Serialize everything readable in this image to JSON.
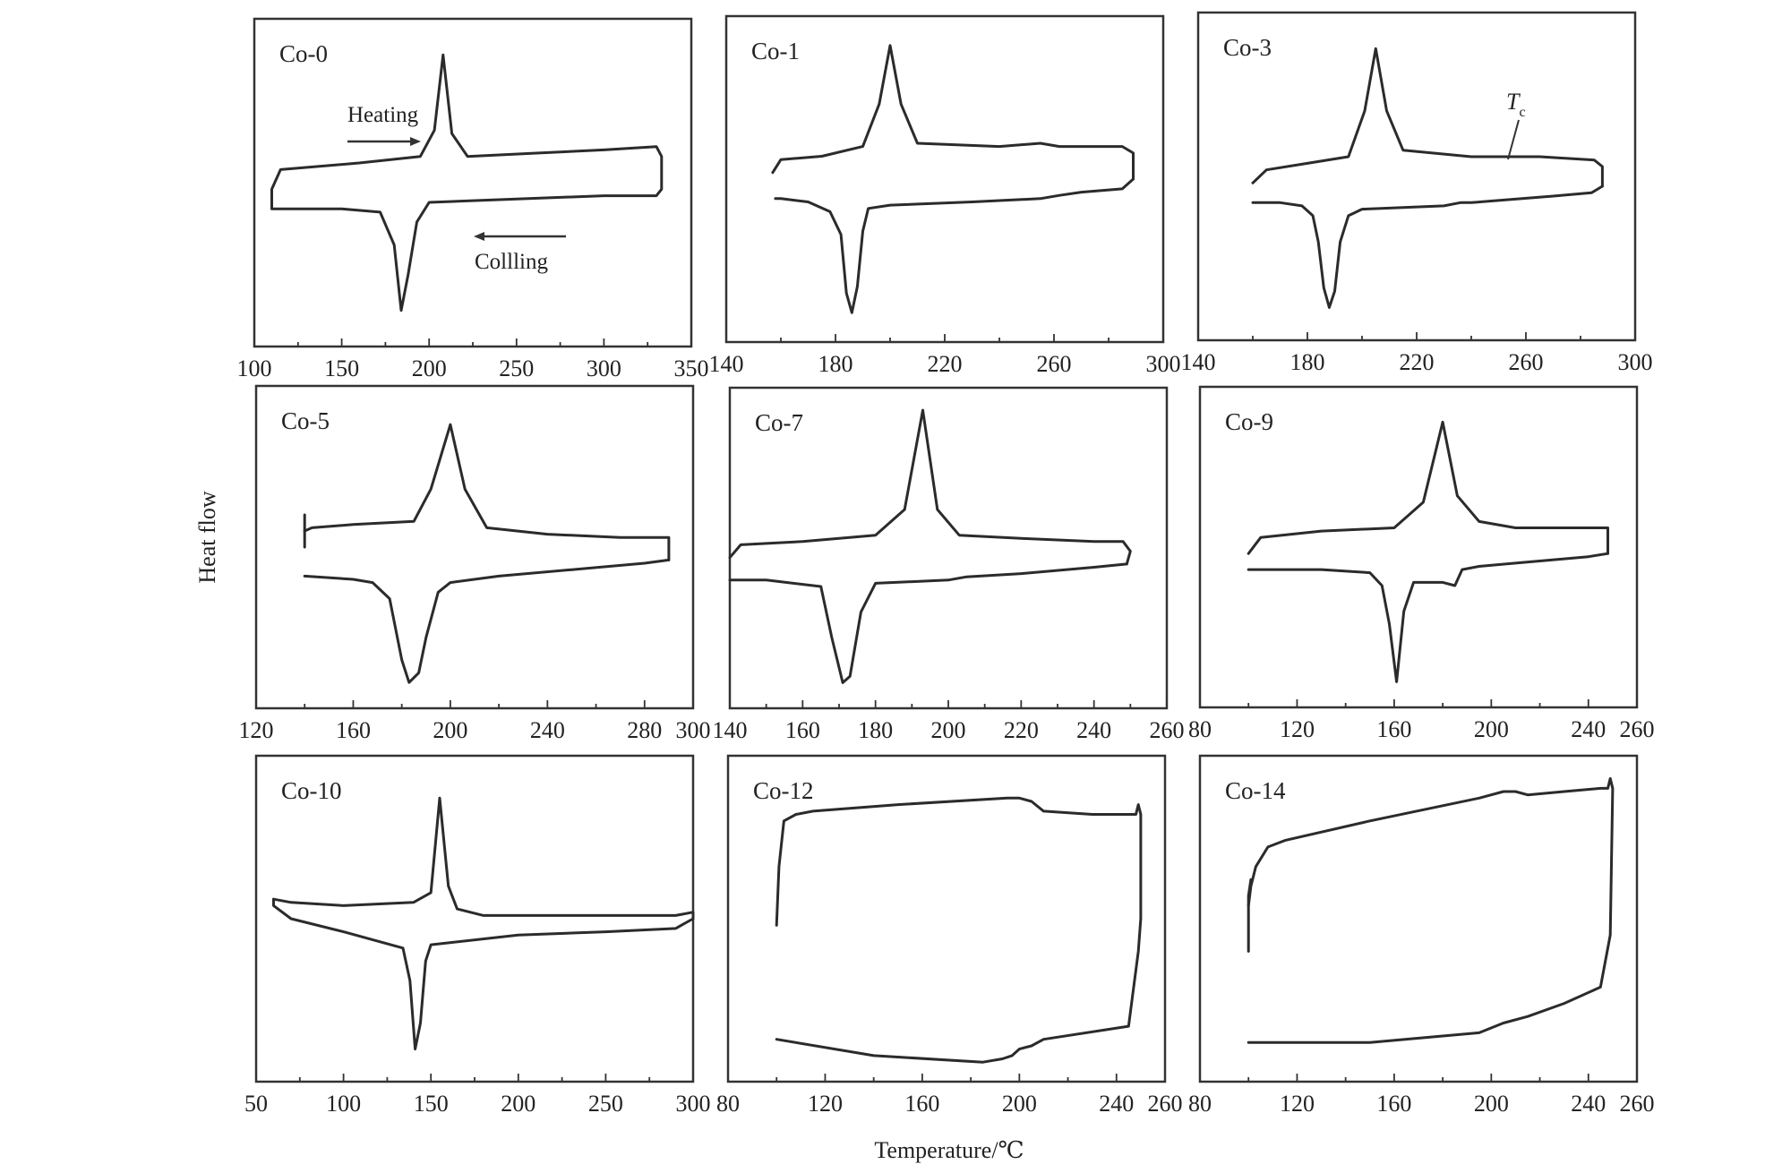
{
  "figure": {
    "ylabel": "Heat flow",
    "xlabel": "Temperature/℃"
  },
  "annotations": {
    "heating": "Heating",
    "cooling": "Collling",
    "tc_main": "T",
    "tc_sub": "c"
  },
  "chart_data": [
    {
      "type": "line",
      "title": "Co-0",
      "xlim": [
        100,
        350
      ],
      "ticks": [
        100,
        150,
        200,
        250,
        300,
        350
      ],
      "series": [
        {
          "x": [
            110,
            115,
            160,
            195,
            203,
            208,
            213,
            222,
            260,
            300,
            330,
            333,
            333,
            330,
            300,
            250,
            200,
            193,
            188,
            184,
            180,
            172,
            150,
            120,
            110,
            110
          ],
          "y": [
            0.48,
            0.54,
            0.56,
            0.58,
            0.66,
            0.89,
            0.65,
            0.58,
            0.59,
            0.6,
            0.61,
            0.58,
            0.48,
            0.46,
            0.46,
            0.45,
            0.44,
            0.38,
            0.22,
            0.11,
            0.31,
            0.41,
            0.42,
            0.42,
            0.42,
            0.48
          ]
        }
      ]
    },
    {
      "type": "line",
      "title": "Co-1",
      "xlim": [
        140,
        300
      ],
      "ticks": [
        140,
        180,
        220,
        260,
        300
      ],
      "series": [
        {
          "x": [
            157,
            160,
            175,
            190,
            196,
            200,
            204,
            210,
            240,
            255,
            262,
            285,
            289,
            289
          ],
          "y": [
            0.52,
            0.56,
            0.57,
            0.6,
            0.73,
            0.91,
            0.73,
            0.61,
            0.6,
            0.61,
            0.6,
            0.6,
            0.58,
            0.5
          ]
        },
        {
          "x": [
            289,
            285,
            270,
            262,
            255,
            230,
            200,
            192,
            190,
            188,
            186,
            184,
            182,
            178,
            170,
            160,
            158
          ],
          "y": [
            0.5,
            0.47,
            0.46,
            0.45,
            0.44,
            0.43,
            0.42,
            0.41,
            0.34,
            0.17,
            0.09,
            0.15,
            0.33,
            0.4,
            0.43,
            0.44,
            0.44
          ]
        }
      ]
    },
    {
      "type": "line",
      "title": "Co-3",
      "xlim": [
        140,
        300
      ],
      "ticks": [
        140,
        180,
        220,
        260,
        300
      ],
      "series": [
        {
          "x": [
            160,
            165,
            180,
            195,
            201,
            205,
            209,
            215,
            240,
            258,
            265,
            285,
            288,
            288
          ],
          "y": [
            0.48,
            0.52,
            0.54,
            0.56,
            0.7,
            0.89,
            0.7,
            0.58,
            0.56,
            0.56,
            0.56,
            0.55,
            0.53,
            0.47
          ]
        },
        {
          "x": [
            288,
            284,
            270,
            255,
            240,
            236,
            230,
            200,
            195,
            192,
            190,
            188,
            186,
            184,
            182,
            178,
            170,
            160
          ],
          "y": [
            0.47,
            0.45,
            0.44,
            0.43,
            0.42,
            0.42,
            0.41,
            0.4,
            0.38,
            0.3,
            0.15,
            0.1,
            0.16,
            0.3,
            0.38,
            0.41,
            0.42,
            0.42
          ]
        }
      ]
    },
    {
      "type": "line",
      "title": "Co-5",
      "xlim": [
        120,
        300
      ],
      "ticks": [
        120,
        160,
        200,
        240,
        280,
        300
      ],
      "series": [
        {
          "x": [
            140,
            143,
            160,
            185,
            192,
            200,
            206,
            215,
            240,
            270,
            290,
            290
          ],
          "y": [
            0.55,
            0.56,
            0.57,
            0.58,
            0.68,
            0.88,
            0.68,
            0.56,
            0.54,
            0.53,
            0.53,
            0.46
          ]
        },
        {
          "x": [
            290,
            280,
            250,
            220,
            200,
            195,
            190,
            187,
            183,
            180,
            175,
            168,
            160,
            140
          ],
          "y": [
            0.46,
            0.45,
            0.43,
            0.41,
            0.39,
            0.36,
            0.22,
            0.11,
            0.08,
            0.15,
            0.34,
            0.39,
            0.4,
            0.41
          ]
        },
        {
          "x": [
            140,
            140
          ],
          "y": [
            0.5,
            0.6
          ]
        }
      ]
    },
    {
      "type": "line",
      "title": "Co-7",
      "xlim": [
        140,
        260
      ],
      "ticks": [
        140,
        160,
        180,
        200,
        220,
        240,
        260
      ],
      "series": [
        {
          "x": [
            140,
            143,
            160,
            180,
            188,
            193,
            197,
            203,
            220,
            240,
            248,
            250,
            249
          ],
          "y": [
            0.47,
            0.51,
            0.52,
            0.54,
            0.62,
            0.93,
            0.62,
            0.54,
            0.53,
            0.52,
            0.52,
            0.49,
            0.45
          ]
        },
        {
          "x": [
            249,
            240,
            220,
            205,
            200,
            180,
            176,
            173,
            171,
            168,
            165,
            150,
            140
          ],
          "y": [
            0.45,
            0.44,
            0.42,
            0.41,
            0.4,
            0.39,
            0.3,
            0.1,
            0.08,
            0.22,
            0.38,
            0.4,
            0.4
          ]
        }
      ]
    },
    {
      "type": "line",
      "title": "Co-9",
      "xlim": [
        80,
        260
      ],
      "ticks": [
        80,
        120,
        160,
        200,
        240,
        260
      ],
      "series": [
        {
          "x": [
            100,
            105,
            130,
            160,
            172,
            180,
            186,
            195,
            210,
            230,
            248,
            248
          ],
          "y": [
            0.48,
            0.53,
            0.55,
            0.56,
            0.64,
            0.89,
            0.66,
            0.58,
            0.56,
            0.56,
            0.56,
            0.48
          ]
        },
        {
          "x": [
            248,
            240,
            210,
            195,
            188,
            185,
            180,
            168,
            164,
            161,
            158,
            155,
            150,
            130,
            100
          ],
          "y": [
            0.48,
            0.47,
            0.45,
            0.44,
            0.43,
            0.38,
            0.39,
            0.39,
            0.3,
            0.08,
            0.26,
            0.38,
            0.42,
            0.43,
            0.43
          ]
        }
      ]
    },
    {
      "type": "line",
      "title": "Co-10",
      "xlim": [
        50,
        300
      ],
      "ticks": [
        50,
        100,
        150,
        200,
        250,
        300
      ],
      "series": [
        {
          "x": [
            60,
            70,
            100,
            140,
            150,
            155,
            160,
            165,
            180,
            250,
            290,
            300,
            300
          ],
          "y": [
            0.56,
            0.55,
            0.54,
            0.55,
            0.58,
            0.87,
            0.6,
            0.53,
            0.51,
            0.51,
            0.51,
            0.52,
            0.5
          ]
        },
        {
          "x": [
            300,
            290,
            250,
            200,
            150,
            147,
            144,
            141,
            138,
            134,
            100,
            70,
            60,
            60
          ],
          "y": [
            0.5,
            0.47,
            0.46,
            0.45,
            0.42,
            0.37,
            0.18,
            0.1,
            0.31,
            0.41,
            0.46,
            0.5,
            0.54,
            0.56
          ]
        }
      ]
    },
    {
      "type": "line",
      "title": "Co-12",
      "xlim": [
        80,
        260
      ],
      "ticks": [
        80,
        120,
        160,
        200,
        240,
        260
      ],
      "series": [
        {
          "x": [
            100,
            101,
            103,
            108,
            115,
            150,
            195,
            200,
            205,
            210,
            230,
            245,
            248,
            249,
            250,
            250,
            249,
            245,
            210,
            205,
            200,
            197,
            193,
            185,
            140,
            100
          ],
          "y": [
            0.48,
            0.66,
            0.8,
            0.82,
            0.83,
            0.85,
            0.87,
            0.87,
            0.86,
            0.83,
            0.82,
            0.82,
            0.82,
            0.85,
            0.82,
            0.5,
            0.4,
            0.17,
            0.13,
            0.11,
            0.1,
            0.08,
            0.07,
            0.06,
            0.08,
            0.13
          ]
        }
      ]
    },
    {
      "type": "line",
      "title": "Co-14",
      "xlim": [
        80,
        260
      ],
      "ticks": [
        80,
        120,
        160,
        200,
        240,
        260
      ],
      "series": [
        {
          "x": [
            100,
            101,
            103,
            108,
            115,
            150,
            195,
            205,
            210,
            215,
            230,
            245,
            248,
            249,
            250,
            249,
            245,
            230,
            215,
            205,
            195,
            150,
            120,
            104,
            100
          ],
          "y": [
            0.54,
            0.6,
            0.66,
            0.72,
            0.74,
            0.8,
            0.87,
            0.89,
            0.89,
            0.88,
            0.89,
            0.9,
            0.9,
            0.93,
            0.9,
            0.45,
            0.29,
            0.24,
            0.2,
            0.18,
            0.15,
            0.12,
            0.12,
            0.12,
            0.12
          ]
        },
        {
          "x": [
            100,
            100,
            101
          ],
          "y": [
            0.4,
            0.57,
            0.62
          ]
        }
      ]
    }
  ]
}
